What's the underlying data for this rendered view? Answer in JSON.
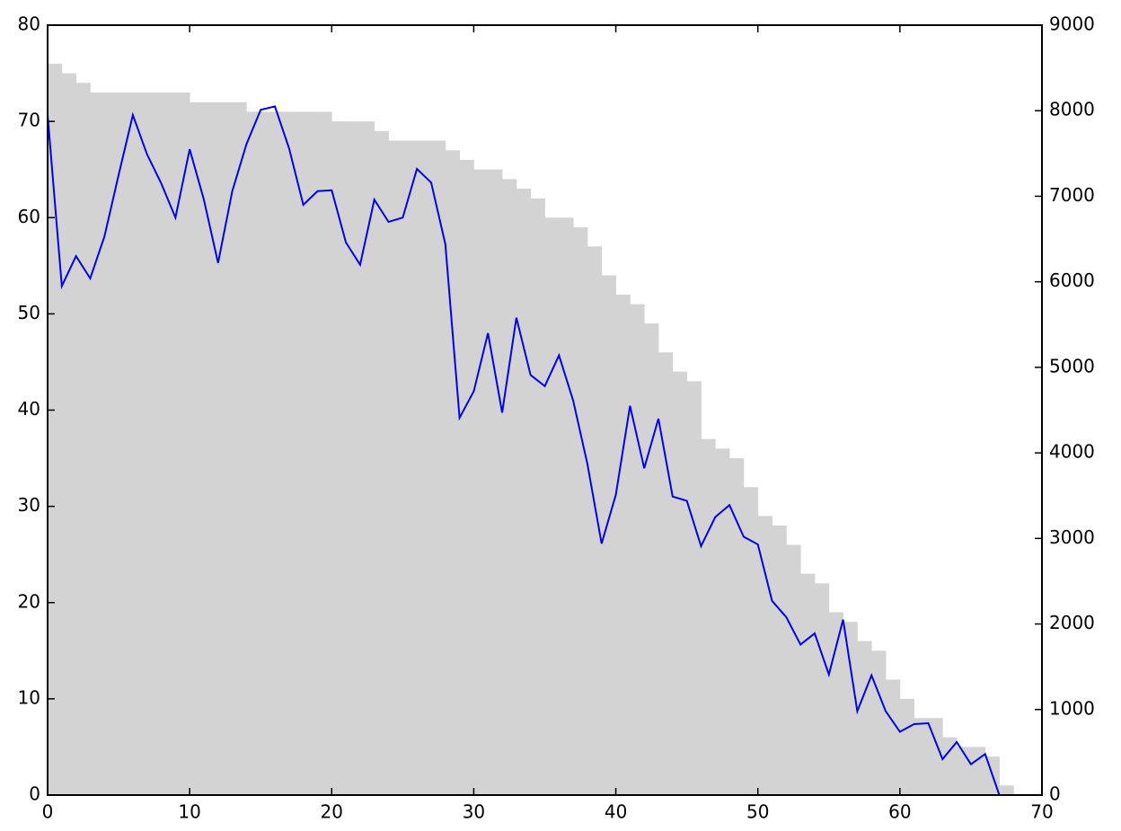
{
  "chart_data": {
    "type": "combo",
    "x": [
      0,
      1,
      2,
      3,
      4,
      5,
      6,
      7,
      8,
      9,
      10,
      11,
      12,
      13,
      14,
      15,
      16,
      17,
      18,
      19,
      20,
      21,
      22,
      23,
      24,
      25,
      26,
      27,
      28,
      29,
      30,
      31,
      32,
      33,
      34,
      35,
      36,
      37,
      38,
      39,
      40,
      41,
      42,
      43,
      44,
      45,
      46,
      47,
      48,
      49,
      50,
      51,
      52,
      53,
      54,
      55,
      56,
      57,
      58,
      59,
      60,
      61,
      62,
      63,
      64,
      65,
      66,
      67
    ],
    "series": [
      {
        "type": "step",
        "color": "#d3d3d3",
        "axis": "y",
        "values": [
          76,
          75,
          74,
          73,
          73,
          73,
          73,
          73,
          73,
          73,
          72,
          72,
          72,
          72,
          71,
          71,
          71,
          71,
          71,
          71,
          70,
          70,
          70,
          69,
          68,
          68,
          68,
          68,
          67,
          66,
          65,
          65,
          64,
          63,
          62,
          60,
          60,
          59,
          57,
          54,
          52,
          51,
          49,
          46,
          44,
          43,
          37,
          36,
          35,
          32,
          29,
          28,
          26,
          23,
          22,
          19,
          18,
          16,
          15,
          12,
          10,
          8,
          8,
          6,
          5,
          5,
          4,
          1
        ]
      },
      {
        "type": "line",
        "color": "#0000ff",
        "axis": "y2",
        "values": [
          7950,
          5950,
          6300,
          6040,
          6530,
          7250,
          7950,
          7490,
          7150,
          6750,
          7550,
          6960,
          6220,
          7060,
          7610,
          8010,
          8050,
          7560,
          6900,
          7060,
          7070,
          6460,
          6200,
          6960,
          6700,
          6750,
          7320,
          7160,
          6440,
          4410,
          4720,
          5400,
          4470,
          5580,
          4910,
          4780,
          5140,
          4610,
          3870,
          2940,
          3510,
          4550,
          3820,
          4400,
          3490,
          3440,
          2910,
          3250,
          3390,
          3020,
          2930,
          2270,
          2080,
          1760,
          1890,
          1410,
          2050,
          980,
          1400,
          980,
          740,
          830,
          840,
          420,
          620,
          360,
          480,
          0
        ]
      }
    ],
    "xlim": [
      0,
      70
    ],
    "xticks": [
      0,
      10,
      20,
      30,
      40,
      50,
      60,
      70
    ],
    "ylim": [
      0,
      80
    ],
    "yticks": [
      0,
      10,
      20,
      30,
      40,
      50,
      60,
      70,
      80
    ],
    "y2lim": [
      0,
      9000
    ],
    "y2ticks": [
      0,
      1000,
      2000,
      3000,
      4000,
      5000,
      6000,
      7000,
      8000,
      9000
    ]
  }
}
